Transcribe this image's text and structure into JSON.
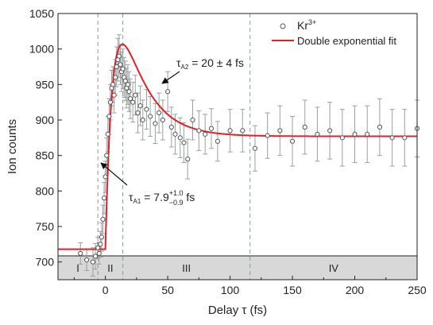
{
  "chart_data": {
    "type": "scatter",
    "xlabel": "Delay τ (fs)",
    "ylabel": "Ion counts",
    "xlim": [
      -38,
      250
    ],
    "ylim": [
      675,
      1050
    ],
    "x_ticks": [
      0,
      50,
      100,
      150,
      200,
      250
    ],
    "y_ticks": [
      700,
      750,
      800,
      850,
      900,
      950,
      1000,
      1050
    ],
    "grid": false,
    "legend_position": "top-right",
    "legend": [
      {
        "label": "Kr",
        "superscript": "3+",
        "marker": "open-circle"
      },
      {
        "label": "Double exponential fit",
        "marker": "line"
      }
    ],
    "colors": {
      "points": "#555555",
      "error_bars": "#9aa0a0",
      "fit": "#e0202a",
      "region_band": "#d8d8d8",
      "dashed_lines": "#8a9a9a"
    },
    "series": [
      {
        "name": "Kr3+",
        "kind": "points-with-error-bars",
        "x": [
          -20,
          -15,
          -10,
          -8,
          -6,
          -5,
          -4,
          -3,
          -2,
          -1,
          0,
          1,
          2,
          3,
          4,
          5,
          6,
          7,
          8,
          9,
          10,
          11,
          12,
          13,
          14,
          15,
          16,
          17,
          18,
          19,
          20,
          22,
          24,
          26,
          28,
          30,
          33,
          36,
          40,
          43,
          46,
          50,
          53,
          56,
          60,
          63,
          66,
          70,
          75,
          80,
          85,
          90,
          100,
          110,
          120,
          130,
          140,
          150,
          160,
          170,
          180,
          190,
          200,
          210,
          220,
          230,
          240,
          250
        ],
        "y": [
          712,
          703,
          700,
          708,
          720,
          712,
          725,
          735,
          760,
          790,
          820,
          850,
          880,
          905,
          925,
          945,
          950,
          935,
          960,
          975,
          985,
          990,
          978,
          968,
          972,
          960,
          955,
          945,
          950,
          940,
          930,
          925,
          935,
          910,
          920,
          900,
          915,
          905,
          895,
          910,
          900,
          940,
          890,
          880,
          875,
          868,
          845,
          900,
          885,
          880,
          888,
          870,
          885,
          885,
          860,
          878,
          885,
          870,
          890,
          880,
          885,
          875,
          880,
          880,
          890,
          875,
          875,
          888
        ],
        "err": [
          15,
          15,
          20,
          18,
          15,
          15,
          18,
          20,
          20,
          22,
          22,
          25,
          25,
          25,
          25,
          25,
          25,
          25,
          25,
          28,
          30,
          30,
          28,
          28,
          28,
          28,
          28,
          28,
          28,
          28,
          28,
          28,
          28,
          28,
          28,
          28,
          28,
          28,
          28,
          28,
          28,
          28,
          28,
          28,
          28,
          28,
          28,
          28,
          28,
          28,
          28,
          28,
          30,
          30,
          32,
          32,
          35,
          35,
          38,
          38,
          40,
          40,
          40,
          40,
          40,
          40,
          40,
          40
        ]
      },
      {
        "name": "Double exponential fit",
        "kind": "line",
        "model": {
          "baseline": 718,
          "plateau": 877,
          "t0": 0,
          "tau_rise": 7.9,
          "tau_decay": 20,
          "amplitude": 380
        }
      }
    ],
    "regions": [
      {
        "label": "I",
        "from": -38,
        "to": -6
      },
      {
        "label": "II",
        "from": -6,
        "to": 14
      },
      {
        "label": "III",
        "from": 14,
        "to": 116
      },
      {
        "label": "IV",
        "from": 116,
        "to": 250
      }
    ],
    "dashed_lines": [
      -6,
      14,
      116
    ],
    "annotations": [
      {
        "id": "tau-a2",
        "symbol": "τ",
        "subscript": "A2",
        "text": " = 20 ± 4 fs",
        "x": 52,
        "y": 945
      },
      {
        "id": "tau-a1",
        "symbol": "τ",
        "subscript": "A1",
        "text_before": " = 7.9",
        "sup": "+1.0",
        "sub": "−0.9",
        "text_after": " fs",
        "x": 14,
        "y": 785
      }
    ]
  }
}
